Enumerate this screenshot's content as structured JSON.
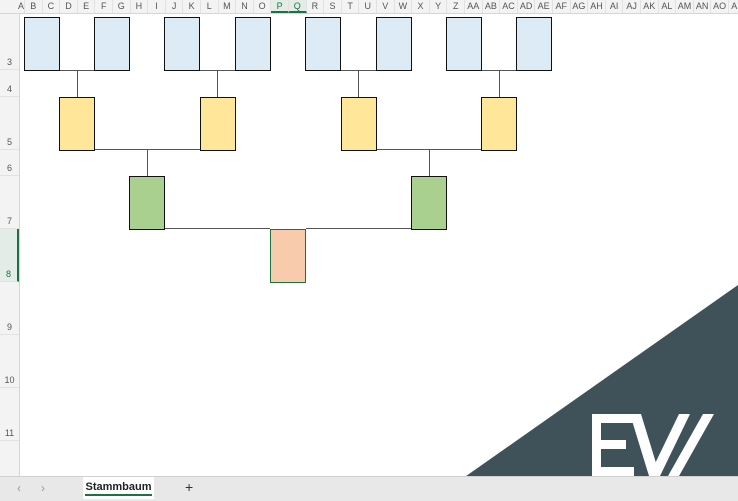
{
  "columns": [
    "A",
    "B",
    "C",
    "D",
    "E",
    "F",
    "G",
    "H",
    "I",
    "J",
    "K",
    "L",
    "M",
    "N",
    "O",
    "P",
    "Q",
    "R",
    "S",
    "T",
    "U",
    "V",
    "W",
    "X",
    "Y",
    "Z",
    "AA",
    "AB",
    "AC",
    "AD",
    "AE",
    "AF",
    "AG",
    "AH",
    "AI",
    "AJ",
    "AK",
    "AL",
    "AM",
    "AN",
    "AO",
    "AP"
  ],
  "selected_columns": [
    "P",
    "Q"
  ],
  "rows": [
    "3",
    "4",
    "5",
    "6",
    "7",
    "8",
    "9",
    "10",
    "11"
  ],
  "selected_row": "8",
  "colors": {
    "grandparent": "#ddebf7",
    "parent": "#ffe699",
    "child": "#a9d08e",
    "root": "#f8cbad",
    "accent": "#1e7145",
    "watermark": "#3f5159"
  },
  "sheet_tabs": [
    {
      "label": "Stammbaum",
      "active": true
    }
  ],
  "add_sheet_label": "+",
  "nav_prev": "‹",
  "nav_next": "›",
  "watermark_logo": "EW"
}
